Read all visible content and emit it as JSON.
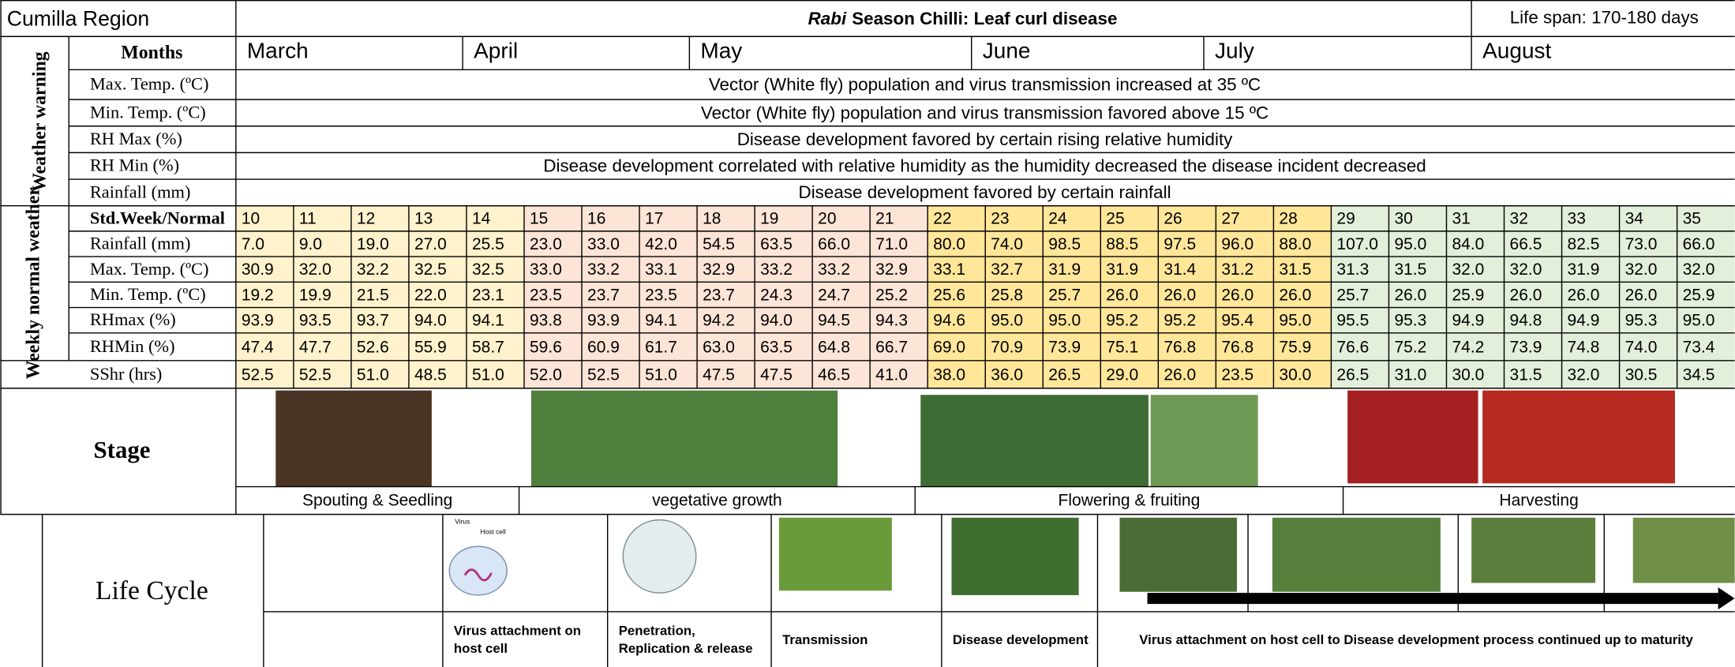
{
  "header": {
    "region": "Cumilla Region",
    "title_italic": "Rabi",
    "title": "Season Chilli: Leaf curl disease",
    "life_span": "Life span: 170-180 days"
  },
  "weather_warning": {
    "label": "Weather warning",
    "months_label": "Months",
    "months": [
      "March",
      "April",
      "May",
      "June",
      "July",
      "August"
    ],
    "rows": [
      {
        "parameter": "Max. Temp. (ºC)",
        "note": "Vector (White fly) population and virus transmission increased at 35 ºC"
      },
      {
        "parameter": "Min. Temp. (ºC)",
        "note": "Vector (White fly) population and virus transmission favored above 15 ºC"
      },
      {
        "parameter": "RH Max (%)",
        "note": "Disease development favored by certain rising relative humidity"
      },
      {
        "parameter": "RH Min (%)",
        "note": "Disease development correlated with relative humidity as the humidity decreased the disease incident decreased"
      },
      {
        "parameter": "Rainfall (mm)",
        "note": "Disease development favored by certain rainfall"
      }
    ]
  },
  "weekly_normal": {
    "label": "Weekly normal weather",
    "rows": [
      {
        "parameter": "Std.Week/Normal",
        "values": [
          10,
          11,
          12,
          13,
          14,
          15,
          16,
          17,
          18,
          19,
          20,
          21,
          22,
          23,
          24,
          25,
          26,
          27,
          28,
          29,
          30,
          31,
          32,
          33,
          34,
          35
        ]
      },
      {
        "parameter": "Rainfall (mm)",
        "values": [
          "7.0",
          "9.0",
          "19.0",
          "27.0",
          "25.5",
          "23.0",
          "33.0",
          "42.0",
          "54.5",
          "63.5",
          "66.0",
          "71.0",
          "80.0",
          "74.0",
          "98.5",
          "88.5",
          "97.5",
          "96.0",
          "88.0",
          "107.0",
          "95.0",
          "84.0",
          "66.5",
          "82.5",
          "73.0",
          "66.0"
        ]
      },
      {
        "parameter": "Max. Temp. (ºC)",
        "values": [
          "30.9",
          "32.0",
          "32.2",
          "32.5",
          "32.5",
          "33.0",
          "33.2",
          "33.1",
          "32.9",
          "33.2",
          "33.2",
          "32.9",
          "33.1",
          "32.7",
          "31.9",
          "31.9",
          "31.4",
          "31.2",
          "31.5",
          "31.3",
          "31.5",
          "32.0",
          "32.0",
          "31.9",
          "32.0",
          "32.0"
        ]
      },
      {
        "parameter": "Min. Temp. (ºC)",
        "values": [
          "19.2",
          "19.9",
          "21.5",
          "22.0",
          "23.1",
          "23.5",
          "23.7",
          "23.5",
          "23.7",
          "24.3",
          "24.7",
          "25.2",
          "25.6",
          "25.8",
          "25.7",
          "26.0",
          "26.0",
          "26.0",
          "26.0",
          "25.7",
          "26.0",
          "25.9",
          "26.0",
          "26.0",
          "26.0",
          "25.9"
        ]
      },
      {
        "parameter": "RHmax (%)",
        "values": [
          "93.9",
          "93.5",
          "93.7",
          "94.0",
          "94.1",
          "93.8",
          "93.9",
          "94.1",
          "94.2",
          "94.0",
          "94.5",
          "94.3",
          "94.6",
          "95.0",
          "95.0",
          "95.2",
          "95.2",
          "95.4",
          "95.0",
          "95.5",
          "95.3",
          "94.9",
          "94.8",
          "94.9",
          "95.3",
          "95.0"
        ]
      },
      {
        "parameter": "RHMin (%)",
        "values": [
          "47.4",
          "47.7",
          "52.6",
          "55.9",
          "58.7",
          "59.6",
          "60.9",
          "61.7",
          "63.0",
          "63.5",
          "64.8",
          "66.7",
          "69.0",
          "70.9",
          "73.9",
          "75.1",
          "76.8",
          "76.8",
          "75.9",
          "76.6",
          "75.2",
          "74.2",
          "73.9",
          "74.8",
          "74.0",
          "73.4"
        ]
      },
      {
        "parameter": "SShr (hrs)",
        "values": [
          "52.5",
          "52.5",
          "51.0",
          "48.5",
          "51.0",
          "52.0",
          "52.5",
          "51.0",
          "47.5",
          "47.5",
          "46.5",
          "41.0",
          "38.0",
          "36.0",
          "26.5",
          "29.0",
          "26.0",
          "23.5",
          "30.0",
          "26.5",
          "31.0",
          "30.0",
          "31.5",
          "32.0",
          "30.5",
          "34.5"
        ]
      }
    ]
  },
  "stage": {
    "label": "Stage",
    "stages": [
      "Spouting  & Seedling",
      "vegetative growth",
      "Flowering & fruiting",
      "Harvesting"
    ]
  },
  "life_cycle": {
    "label": "Life Cycle",
    "illustration_labels": [
      "Virus",
      "Host cell"
    ],
    "steps": [
      {
        "lines": [
          "Virus attachment on",
          "host cell"
        ]
      },
      {
        "lines": [
          "Penetration,",
          "Replication & release"
        ]
      },
      {
        "lines": [
          "Transmission"
        ]
      },
      {
        "lines": [
          "Disease development"
        ]
      },
      {
        "lines": [
          "Virus attachment on host cell to Disease development process continued up to maturity"
        ]
      }
    ]
  }
}
